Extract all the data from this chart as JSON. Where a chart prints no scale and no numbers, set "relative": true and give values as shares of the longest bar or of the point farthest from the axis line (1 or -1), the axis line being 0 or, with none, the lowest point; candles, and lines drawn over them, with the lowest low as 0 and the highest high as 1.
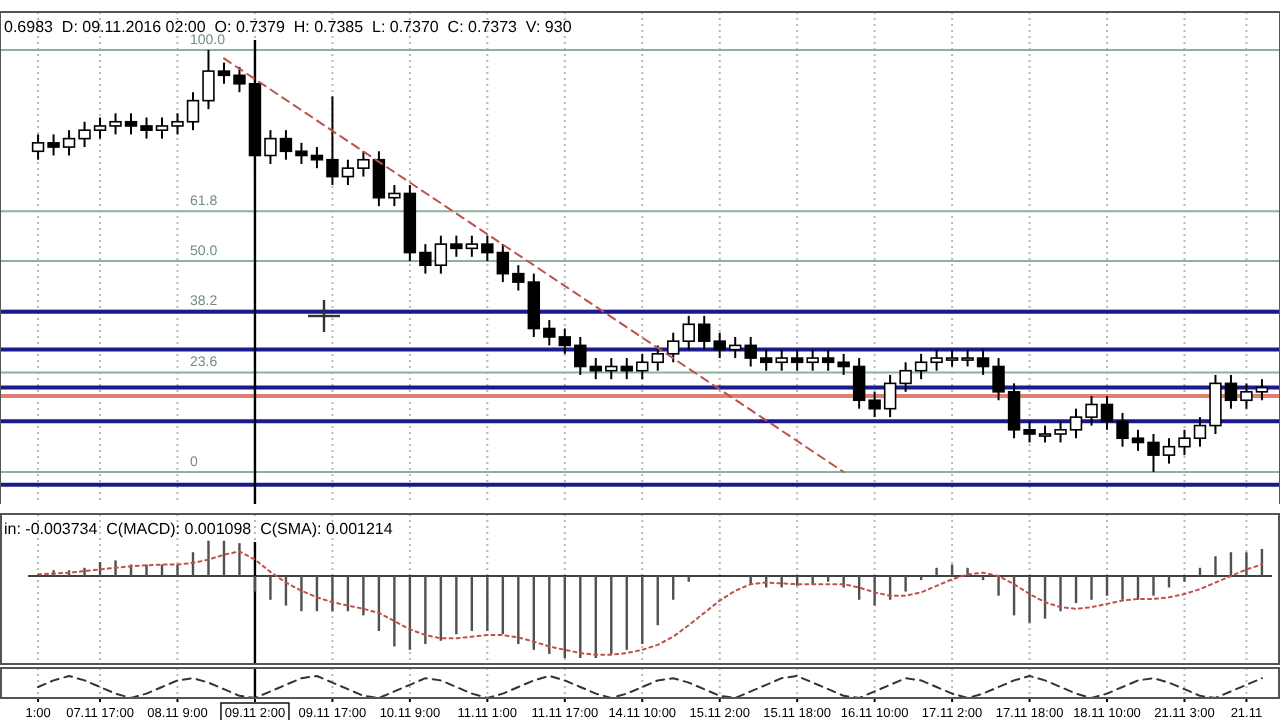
{
  "chart_data": [
    {
      "type": "candlestick",
      "relative": true,
      "tick_labels": false,
      "grid": "x",
      "color": "#000000",
      "annotations": [
        "0.6983  D: 09.11.2016 02:00  O: 0.7379  H: 0.7385  L: 0.7370  C: 0.7373  V: 930"
      ],
      "categories": [
        "1:00",
        null,
        null,
        null,
        "07.11 17:00",
        null,
        null,
        null,
        null,
        "08.11 9:00",
        null,
        null,
        null,
        null,
        "09.11 2:00",
        null,
        null,
        null,
        null,
        "09.11 17:00",
        null,
        null,
        null,
        null,
        "10.11 9:00",
        null,
        null,
        null,
        null,
        "11.11 1:00",
        null,
        null,
        null,
        null,
        "11.11 17:00",
        null,
        null,
        null,
        null,
        "14.11 10:00",
        null,
        null,
        null,
        null,
        "15.11 2:00",
        null,
        null,
        null,
        null,
        "15.11 18:00",
        null,
        null,
        null,
        null,
        "16.11 10:00",
        null,
        null,
        null,
        null,
        "17.11 2:00",
        null,
        null,
        null,
        null,
        "17.11 18:00",
        null,
        null,
        null,
        null,
        "18.11 10:00",
        null,
        null,
        null,
        null,
        "21.11 3:00",
        null,
        null,
        null,
        "21.11",
        null
      ],
      "ohlc": [
        [
          0.76,
          0.8,
          0.74,
          0.78
        ],
        [
          0.78,
          0.8,
          0.75,
          0.77
        ],
        [
          0.77,
          0.81,
          0.75,
          0.79
        ],
        [
          0.79,
          0.83,
          0.77,
          0.81
        ],
        [
          0.81,
          0.84,
          0.79,
          0.82
        ],
        [
          0.82,
          0.85,
          0.8,
          0.83
        ],
        [
          0.83,
          0.85,
          0.8,
          0.82
        ],
        [
          0.82,
          0.84,
          0.79,
          0.81
        ],
        [
          0.81,
          0.84,
          0.79,
          0.82
        ],
        [
          0.82,
          0.85,
          0.8,
          0.83
        ],
        [
          0.83,
          0.9,
          0.81,
          0.88
        ],
        [
          0.88,
          1.0,
          0.86,
          0.95
        ],
        [
          0.95,
          0.97,
          0.92,
          0.94
        ],
        [
          0.94,
          0.96,
          0.9,
          0.92
        ],
        [
          0.92,
          0.94,
          0.69,
          0.75
        ],
        [
          0.75,
          0.81,
          0.73,
          0.79
        ],
        [
          0.79,
          0.81,
          0.74,
          0.76
        ],
        [
          0.76,
          0.78,
          0.73,
          0.75
        ],
        [
          0.75,
          0.77,
          0.72,
          0.74
        ],
        [
          0.74,
          0.89,
          0.68,
          0.7
        ],
        [
          0.7,
          0.74,
          0.68,
          0.72
        ],
        [
          0.72,
          0.76,
          0.7,
          0.74
        ],
        [
          0.74,
          0.76,
          0.63,
          0.65
        ],
        [
          0.65,
          0.68,
          0.63,
          0.66
        ],
        [
          0.66,
          0.68,
          0.5,
          0.52
        ],
        [
          0.52,
          0.54,
          0.47,
          0.49
        ],
        [
          0.49,
          0.56,
          0.47,
          0.54
        ],
        [
          0.54,
          0.56,
          0.51,
          0.53
        ],
        [
          0.53,
          0.56,
          0.51,
          0.54
        ],
        [
          0.54,
          0.56,
          0.5,
          0.52
        ],
        [
          0.52,
          0.54,
          0.45,
          0.47
        ],
        [
          0.47,
          0.49,
          0.43,
          0.45
        ],
        [
          0.45,
          0.47,
          0.32,
          0.34
        ],
        [
          0.34,
          0.36,
          0.3,
          0.32
        ],
        [
          0.32,
          0.34,
          0.28,
          0.3
        ],
        [
          0.3,
          0.32,
          0.23,
          0.25
        ],
        [
          0.25,
          0.27,
          0.22,
          0.24
        ],
        [
          0.24,
          0.27,
          0.22,
          0.25
        ],
        [
          0.25,
          0.27,
          0.22,
          0.24
        ],
        [
          0.24,
          0.28,
          0.22,
          0.26
        ],
        [
          0.26,
          0.3,
          0.24,
          0.28
        ],
        [
          0.28,
          0.33,
          0.26,
          0.31
        ],
        [
          0.31,
          0.37,
          0.29,
          0.35
        ],
        [
          0.35,
          0.37,
          0.29,
          0.31
        ],
        [
          0.31,
          0.33,
          0.27,
          0.29
        ],
        [
          0.29,
          0.32,
          0.27,
          0.3
        ],
        [
          0.3,
          0.32,
          0.25,
          0.27
        ],
        [
          0.27,
          0.29,
          0.24,
          0.26
        ],
        [
          0.26,
          0.29,
          0.24,
          0.27
        ],
        [
          0.27,
          0.29,
          0.24,
          0.26
        ],
        [
          0.26,
          0.29,
          0.24,
          0.27
        ],
        [
          0.27,
          0.29,
          0.24,
          0.26
        ],
        [
          0.26,
          0.28,
          0.23,
          0.25
        ],
        [
          0.25,
          0.27,
          0.15,
          0.17
        ],
        [
          0.17,
          0.19,
          0.13,
          0.15
        ],
        [
          0.15,
          0.23,
          0.13,
          0.21
        ],
        [
          0.21,
          0.26,
          0.19,
          0.24
        ],
        [
          0.24,
          0.28,
          0.22,
          0.26
        ],
        [
          0.26,
          0.29,
          0.24,
          0.27
        ],
        [
          0.27,
          0.29,
          0.25,
          0.27
        ],
        [
          0.27,
          0.29,
          0.25,
          0.27
        ],
        [
          0.27,
          0.29,
          0.23,
          0.25
        ],
        [
          0.25,
          0.27,
          0.17,
          0.19
        ],
        [
          0.19,
          0.21,
          0.08,
          0.1
        ],
        [
          0.1,
          0.12,
          0.07,
          0.09
        ],
        [
          0.09,
          0.11,
          0.07,
          0.09
        ],
        [
          0.09,
          0.12,
          0.07,
          0.1
        ],
        [
          0.1,
          0.15,
          0.08,
          0.13
        ],
        [
          0.13,
          0.18,
          0.11,
          0.16
        ],
        [
          0.16,
          0.18,
          0.1,
          0.12
        ],
        [
          0.12,
          0.14,
          0.06,
          0.08
        ],
        [
          0.08,
          0.1,
          0.05,
          0.07
        ],
        [
          0.07,
          0.09,
          0.0,
          0.04
        ],
        [
          0.04,
          0.08,
          0.02,
          0.06
        ],
        [
          0.06,
          0.1,
          0.04,
          0.08
        ],
        [
          0.08,
          0.13,
          0.06,
          0.11
        ],
        [
          0.11,
          0.23,
          0.09,
          0.21
        ],
        [
          0.21,
          0.23,
          0.15,
          0.17
        ],
        [
          0.17,
          0.21,
          0.15,
          0.19
        ],
        [
          0.19,
          0.22,
          0.17,
          0.2
        ]
      ],
      "series": [
        {
          "type": "line",
          "color": "#c0504d",
          "line_style": "dashed",
          "values": [
            null,
            null,
            null,
            null,
            null,
            null,
            null,
            null,
            null,
            null,
            null,
            null,
            0.98,
            null,
            null,
            null,
            null,
            null,
            null,
            null,
            null,
            null,
            null,
            null,
            null,
            null,
            null,
            null,
            null,
            null,
            null,
            null,
            null,
            null,
            null,
            null,
            null,
            null,
            null,
            null,
            null,
            null,
            null,
            null,
            null,
            null,
            null,
            null,
            null,
            null,
            null,
            null,
            0.0,
            null,
            null,
            null,
            null,
            null,
            null,
            null,
            null,
            null,
            null,
            null,
            null,
            null,
            null,
            null,
            null,
            null,
            null,
            null,
            null,
            null,
            null,
            null,
            null,
            null,
            null,
            null
          ]
        }
      ],
      "ref_lines": [
        {
          "axis": "y",
          "value": 1,
          "label": "100.0",
          "color": "#8fb0a0"
        },
        {
          "axis": "y",
          "value": 0.618,
          "label": "61.8",
          "color": "#8fb0a0"
        },
        {
          "axis": "y",
          "value": 0.5,
          "label": "50.0",
          "color": "#8fb0a0"
        },
        {
          "axis": "y",
          "value": 0.382,
          "label": "38.2",
          "color": "#8fb0a0"
        },
        {
          "axis": "y",
          "value": 0.236,
          "label": "23.6",
          "color": "#8fb0a0"
        },
        {
          "axis": "y",
          "value": 0,
          "label": "0",
          "color": "#8fb0a0"
        },
        {
          "axis": "y",
          "value": 0.38,
          "color": "#1a1a8c"
        },
        {
          "axis": "y",
          "value": 0.29,
          "color": "#1a1a8c"
        },
        {
          "axis": "y",
          "value": 0.2,
          "color": "#1a1a8c"
        },
        {
          "axis": "y",
          "value": 0.12,
          "color": "#1a1a8c"
        },
        {
          "axis": "y",
          "value": -0.03,
          "color": "#1a1a8c"
        },
        {
          "axis": "y",
          "value": 0.18,
          "color": "#e08070"
        },
        {
          "axis": "x",
          "value": "09.11 2:00",
          "color": "#000000"
        }
      ]
    },
    {
      "type": "bar",
      "relative": true,
      "tick_labels": false,
      "grid": "x",
      "annotations": [
        "in: -0.003734  C(MACD): 0.001098  C(SMA): 0.001214"
      ],
      "categories": [
        "1:00",
        null,
        null,
        null,
        "07.11 17:00",
        null,
        null,
        null,
        null,
        "08.11 9:00",
        null,
        null,
        null,
        null,
        "09.11 2:00",
        null,
        null,
        null,
        null,
        "09.11 17:00",
        null,
        null,
        null,
        null,
        "10.11 9:00",
        null,
        null,
        null,
        null,
        "11.11 1:00",
        null,
        null,
        null,
        null,
        "11.11 17:00",
        null,
        null,
        null,
        null,
        "14.11 10:00",
        null,
        null,
        null,
        null,
        "15.11 2:00",
        null,
        null,
        null,
        null,
        "15.11 18:00",
        null,
        null,
        null,
        null,
        "16.11 10:00",
        null,
        null,
        null,
        null,
        "17.11 2:00",
        null,
        null,
        null,
        null,
        "17.11 18:00",
        null,
        null,
        null,
        null,
        "18.11 10:00",
        null,
        null,
        null,
        null,
        "21.11 3:00",
        null,
        null,
        null,
        "21.11",
        null
      ],
      "series": [
        {
          "type": "bar",
          "color": "#505050",
          "values": [
            null,
            0.07,
            0.07,
            0.1,
            0.17,
            0.19,
            0.14,
            0.14,
            0.14,
            0.14,
            0.29,
            0.43,
            0.43,
            0.4,
            -0.19,
            -0.29,
            -0.36,
            -0.43,
            -0.43,
            -0.43,
            -0.43,
            -0.48,
            -0.67,
            -0.86,
            -0.9,
            -0.83,
            -0.79,
            -0.71,
            -0.67,
            -0.67,
            -0.71,
            -0.83,
            -0.9,
            -0.95,
            -1,
            -1,
            -1,
            -0.95,
            -0.9,
            -0.83,
            -0.6,
            -0.29,
            -0.07,
            null,
            null,
            0,
            -0.1,
            -0.14,
            -0.14,
            -0.12,
            -0.1,
            -0.07,
            -0.14,
            -0.29,
            -0.36,
            -0.29,
            -0.19,
            -0.05,
            0.1,
            0.14,
            0.1,
            -0.05,
            -0.24,
            -0.48,
            -0.57,
            -0.52,
            -0.43,
            -0.33,
            -0.29,
            -0.24,
            -0.29,
            -0.29,
            -0.24,
            -0.14,
            -0.07,
            0.1,
            0.24,
            0.29,
            0.29,
            0.33
          ]
        },
        {
          "type": "line",
          "color": "#c0504d",
          "line_style": "dotted",
          "values": [
            0.02,
            0.03,
            0.04,
            0.06,
            0.08,
            0.1,
            0.12,
            0.13,
            0.14,
            0.14,
            0.16,
            0.2,
            0.26,
            0.3,
            0.2,
            0.05,
            -0.08,
            -0.18,
            -0.26,
            -0.32,
            -0.36,
            -0.4,
            -0.45,
            -0.55,
            -0.65,
            -0.72,
            -0.76,
            -0.76,
            -0.74,
            -0.72,
            -0.72,
            -0.75,
            -0.8,
            -0.86,
            -0.9,
            -0.94,
            -0.96,
            -0.96,
            -0.94,
            -0.9,
            -0.84,
            -0.74,
            -0.6,
            -0.45,
            -0.3,
            -0.18,
            -0.1,
            -0.08,
            -0.09,
            -0.1,
            -0.1,
            -0.1,
            -0.1,
            -0.14,
            -0.2,
            -0.24,
            -0.24,
            -0.2,
            -0.12,
            -0.04,
            0.02,
            0.04,
            0,
            -0.1,
            -0.22,
            -0.32,
            -0.38,
            -0.4,
            -0.38,
            -0.34,
            -0.3,
            -0.28,
            -0.28,
            -0.26,
            -0.22,
            -0.16,
            -0.08,
            0,
            0.08,
            0.14
          ]
        }
      ],
      "ref_lines": [
        {
          "axis": "x",
          "value": "09.11 2:00",
          "color": "#000000"
        }
      ]
    },
    {
      "type": "line",
      "relative": true,
      "grid": "x",
      "categories": [
        "1:00",
        null,
        null,
        null,
        "07.11 17:00",
        null,
        null,
        null,
        null,
        "08.11 9:00",
        null,
        null,
        null,
        null,
        "09.11 2:00",
        null,
        null,
        null,
        null,
        "09.11 17:00",
        null,
        null,
        null,
        null,
        "10.11 9:00",
        null,
        null,
        null,
        null,
        "11.11 1:00",
        null,
        null,
        null,
        null,
        "11.11 17:00",
        null,
        null,
        null,
        null,
        "14.11 10:00",
        null,
        null,
        null,
        null,
        "15.11 2:00",
        null,
        null,
        null,
        null,
        "15.11 18:00",
        null,
        null,
        null,
        null,
        "16.11 10:00",
        null,
        null,
        null,
        null,
        "17.11 2:00",
        null,
        null,
        null,
        null,
        "17.11 18:00",
        null,
        null,
        null,
        null,
        "18.11 10:00",
        null,
        null,
        null,
        null,
        "21.11 3:00",
        null,
        null,
        null,
        "21.11",
        null
      ],
      "series": [
        {
          "color": "#333333",
          "line_style": "dashed",
          "values": [
            0.5,
            0.8,
            1,
            0.8,
            0.5,
            0.2,
            0,
            0.2,
            0.5,
            0.8,
            0.9,
            0.7,
            0.4,
            0.1,
            0,
            0.3,
            0.6,
            0.9,
            1,
            0.7,
            0.4,
            0.1,
            0,
            0.3,
            0.6,
            0.9,
            0.8,
            0.5,
            0.2,
            0,
            0.2,
            0.5,
            0.8,
            1,
            0.8,
            0.5,
            0.2,
            0,
            0.2,
            0.5,
            0.8,
            0.9,
            0.7,
            0.4,
            0.1,
            0,
            0.3,
            0.6,
            0.9,
            1,
            0.7,
            0.4,
            0.1,
            0,
            0.3,
            0.6,
            0.9,
            0.8,
            0.5,
            0.2,
            0,
            0.2,
            0.5,
            0.8,
            1,
            0.8,
            0.5,
            0.2,
            0,
            0.2,
            0.5,
            0.8,
            0.9,
            0.7,
            0.4,
            0.1,
            0,
            0.3,
            0.6,
            0.9
          ]
        }
      ],
      "ref_lines": [
        {
          "axis": "x",
          "value": "09.11 2:00",
          "color": "#000000"
        }
      ]
    }
  ]
}
